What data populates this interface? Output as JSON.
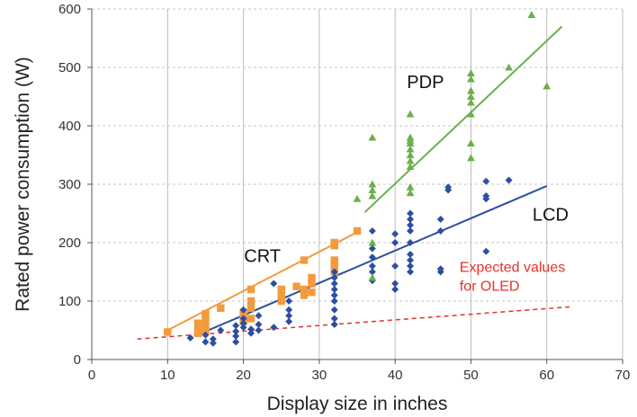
{
  "chart_data": {
    "type": "scatter",
    "title": "",
    "xlabel": "Display size in inches",
    "ylabel": "Rated power consumption (W)",
    "xlim": [
      0,
      70
    ],
    "ylim": [
      0,
      600
    ],
    "xticks": [
      "0",
      "10",
      "20",
      "30",
      "40",
      "50",
      "60",
      "70"
    ],
    "yticks": [
      "0",
      "100",
      "200",
      "300",
      "400",
      "500",
      "600"
    ],
    "grid": true,
    "series": [
      {
        "name": "CRT",
        "color": "#f39a3c",
        "marker": "square",
        "points": [
          [
            10,
            47
          ],
          [
            14,
            45
          ],
          [
            14,
            55
          ],
          [
            14,
            62
          ],
          [
            15,
            50
          ],
          [
            15,
            60
          ],
          [
            15,
            70
          ],
          [
            15,
            78
          ],
          [
            17,
            88
          ],
          [
            20,
            65
          ],
          [
            20,
            72
          ],
          [
            20,
            80
          ],
          [
            21,
            70
          ],
          [
            21,
            88
          ],
          [
            21,
            100
          ],
          [
            21,
            120
          ],
          [
            25,
            100
          ],
          [
            25,
            110
          ],
          [
            25,
            120
          ],
          [
            27,
            125
          ],
          [
            28,
            110
          ],
          [
            28,
            120
          ],
          [
            28,
            170
          ],
          [
            29,
            115
          ],
          [
            29,
            130
          ],
          [
            29,
            140
          ],
          [
            32,
            150
          ],
          [
            32,
            160
          ],
          [
            32,
            170
          ],
          [
            32,
            195
          ],
          [
            32,
            200
          ],
          [
            35,
            220
          ]
        ],
        "trend": [
          [
            10,
            50
          ],
          [
            35,
            218
          ]
        ]
      },
      {
        "name": "LCD",
        "color": "#2e4fa0",
        "marker": "diamond",
        "points": [
          [
            13,
            37
          ],
          [
            15,
            30
          ],
          [
            15,
            42
          ],
          [
            16,
            28
          ],
          [
            16,
            35
          ],
          [
            17,
            50
          ],
          [
            19,
            30
          ],
          [
            19,
            40
          ],
          [
            19,
            48
          ],
          [
            19,
            58
          ],
          [
            20,
            55
          ],
          [
            20,
            62
          ],
          [
            20,
            70
          ],
          [
            20,
            85
          ],
          [
            21,
            45
          ],
          [
            21,
            52
          ],
          [
            22,
            50
          ],
          [
            22,
            60
          ],
          [
            22,
            75
          ],
          [
            24,
            55
          ],
          [
            24,
            130
          ],
          [
            26,
            65
          ],
          [
            26,
            75
          ],
          [
            26,
            85
          ],
          [
            26,
            100
          ],
          [
            32,
            60
          ],
          [
            32,
            70
          ],
          [
            32,
            85
          ],
          [
            32,
            100
          ],
          [
            32,
            110
          ],
          [
            32,
            120
          ],
          [
            32,
            130
          ],
          [
            32,
            140
          ],
          [
            32,
            150
          ],
          [
            37,
            135
          ],
          [
            37,
            150
          ],
          [
            37,
            160
          ],
          [
            37,
            175
          ],
          [
            37,
            190
          ],
          [
            37,
            220
          ],
          [
            40,
            120
          ],
          [
            40,
            130
          ],
          [
            40,
            160
          ],
          [
            40,
            200
          ],
          [
            40,
            215
          ],
          [
            42,
            150
          ],
          [
            42,
            160
          ],
          [
            42,
            170
          ],
          [
            42,
            180
          ],
          [
            42,
            200
          ],
          [
            42,
            220
          ],
          [
            42,
            230
          ],
          [
            42,
            240
          ],
          [
            42,
            250
          ],
          [
            46,
            150
          ],
          [
            46,
            155
          ],
          [
            46,
            220
          ],
          [
            46,
            240
          ],
          [
            47,
            290
          ],
          [
            47,
            295
          ],
          [
            52,
            185
          ],
          [
            52,
            275
          ],
          [
            52,
            280
          ],
          [
            52,
            305
          ],
          [
            55,
            307
          ]
        ],
        "trend": [
          [
            15,
            48
          ],
          [
            60,
            297
          ]
        ]
      },
      {
        "name": "PDP",
        "color": "#6ab04c",
        "marker": "triangle",
        "points": [
          [
            35,
            275
          ],
          [
            37,
            140
          ],
          [
            37,
            200
          ],
          [
            37,
            280
          ],
          [
            37,
            290
          ],
          [
            37,
            300
          ],
          [
            37,
            380
          ],
          [
            42,
            285
          ],
          [
            42,
            295
          ],
          [
            42,
            330
          ],
          [
            42,
            340
          ],
          [
            42,
            350
          ],
          [
            42,
            360
          ],
          [
            42,
            370
          ],
          [
            42,
            375
          ],
          [
            42,
            380
          ],
          [
            42,
            420
          ],
          [
            50,
            345
          ],
          [
            50,
            370
          ],
          [
            50,
            420
          ],
          [
            50,
            440
          ],
          [
            50,
            450
          ],
          [
            50,
            460
          ],
          [
            50,
            480
          ],
          [
            50,
            490
          ],
          [
            55,
            500
          ],
          [
            58,
            590
          ],
          [
            60,
            468
          ]
        ],
        "trend": [
          [
            36,
            252
          ],
          [
            62,
            570
          ]
        ]
      }
    ],
    "reference_line": {
      "name": "Expected values for OLED",
      "color": "#e8302a",
      "dashed": true,
      "points": [
        [
          6,
          35
        ],
        [
          63,
          90
        ]
      ]
    },
    "annotations": [
      {
        "text": "PDP",
        "x": 44,
        "y": 465
      },
      {
        "text": "LCD",
        "x": 60.5,
        "y": 238
      },
      {
        "text": "CRT",
        "x": 22.5,
        "y": 167
      },
      {
        "text": "Expected values",
        "x": 48.5,
        "y": 150,
        "color": "#e8302a"
      },
      {
        "text": "for OLED",
        "x": 48.5,
        "y": 118,
        "color": "#e8302a"
      }
    ]
  }
}
